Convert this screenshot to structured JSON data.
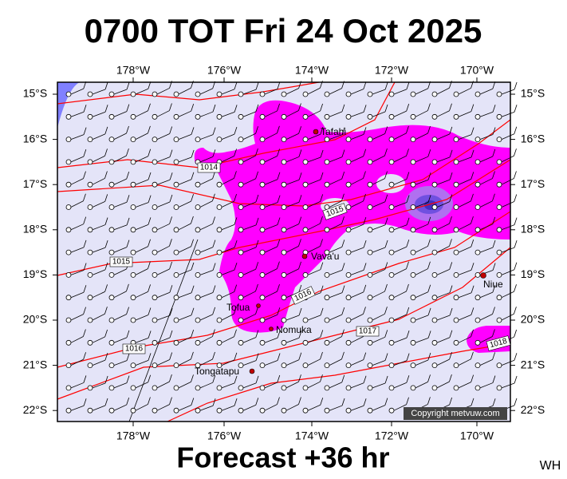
{
  "title": "0700 TOT Fri 24 Oct 2025",
  "footer": "Forecast +36 hr",
  "corner_tag": "WH",
  "copyright": "Copyright metvuw.com",
  "longitude_labels": [
    "178°W",
    "176°W",
    "174°W",
    "172°W",
    "170°W"
  ],
  "latitude_labels": [
    "15°S",
    "16°S",
    "17°S",
    "18°S",
    "19°S",
    "20°S",
    "21°S",
    "22°S"
  ],
  "places": [
    "Tafahi",
    "Vava'u",
    "Niue",
    "Tofua",
    "Nomuka",
    "Tongatapu"
  ],
  "isobar_labels": [
    1014,
    1015,
    1015,
    1016,
    1017,
    1016,
    1018
  ]
}
